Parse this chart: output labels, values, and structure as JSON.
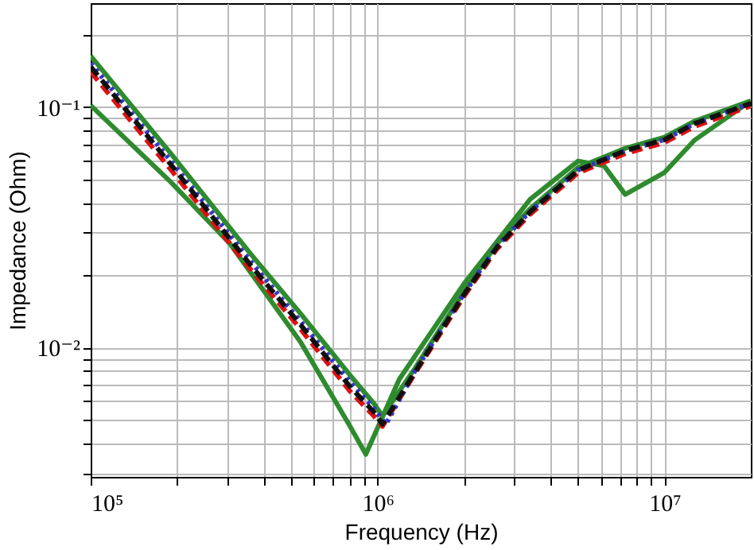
{
  "chart_data": {
    "type": "line",
    "xlabel": "Frequency (Hz)",
    "ylabel": "Impedance (Ohm)",
    "log": "xy",
    "grid": true,
    "marker": "none",
    "xlim": [
      100000,
      20000000
    ],
    "ylim": [
      0.0029,
      0.27
    ],
    "xticks": [
      {
        "value": 100000,
        "label": "10⁵"
      },
      {
        "value": 200000,
        "label": null
      },
      {
        "value": 300000,
        "label": null
      },
      {
        "value": 400000,
        "label": null
      },
      {
        "value": 500000,
        "label": null
      },
      {
        "value": 600000,
        "label": null
      },
      {
        "value": 700000,
        "label": null
      },
      {
        "value": 800000,
        "label": null
      },
      {
        "value": 900000,
        "label": null
      },
      {
        "value": 1000000,
        "label": "10⁶"
      },
      {
        "value": 2000000,
        "label": null
      },
      {
        "value": 3000000,
        "label": null
      },
      {
        "value": 4000000,
        "label": null
      },
      {
        "value": 5000000,
        "label": null
      },
      {
        "value": 6000000,
        "label": null
      },
      {
        "value": 7000000,
        "label": null
      },
      {
        "value": 8000000,
        "label": null
      },
      {
        "value": 9000000,
        "label": null
      },
      {
        "value": 10000000,
        "label": "10⁷"
      }
    ],
    "yticks": [
      {
        "value": 0.003,
        "label": null
      },
      {
        "value": 0.004,
        "label": null
      },
      {
        "value": 0.005,
        "label": null
      },
      {
        "value": 0.006,
        "label": null
      },
      {
        "value": 0.007,
        "label": null
      },
      {
        "value": 0.008,
        "label": null
      },
      {
        "value": 0.009,
        "label": null
      },
      {
        "value": 0.01,
        "label": "10⁻²"
      },
      {
        "value": 0.02,
        "label": null
      },
      {
        "value": 0.03,
        "label": null
      },
      {
        "value": 0.04,
        "label": null
      },
      {
        "value": 0.05,
        "label": null
      },
      {
        "value": 0.06,
        "label": null
      },
      {
        "value": 0.07,
        "label": null
      },
      {
        "value": 0.08,
        "label": null
      },
      {
        "value": 0.09,
        "label": null
      },
      {
        "value": 0.1,
        "label": "10⁻¹"
      },
      {
        "value": 0.2,
        "label": null
      }
    ],
    "series": [
      {
        "color": "#2e8b2e",
        "line_style": "solid",
        "x": [
          100000,
          190000,
          360000,
          540000,
          800000,
          970000,
          1040000,
          1350000,
          2000000,
          2600000,
          3400000,
          5000000,
          7300000,
          10000000,
          12700000,
          20000000
        ],
        "values": [
          0.163,
          0.0642,
          0.0246,
          0.0138,
          0.0077,
          0.00586,
          0.00519,
          0.0082,
          0.0171,
          0.0269,
          0.0377,
          0.056,
          0.0673,
          0.0748,
          0.0872,
          0.106
        ]
      },
      {
        "color": "#2e8b2e",
        "line_style": "solid",
        "x": [
          100000,
          190000,
          306000,
          540000,
          800000,
          910000,
          1190000,
          2000000,
          3400000,
          5000000,
          6150000,
          7300000,
          10000000,
          12700000,
          20000000
        ],
        "values": [
          0.1015,
          0.0488,
          0.027,
          0.0105,
          0.00473,
          0.0036,
          0.00738,
          0.0184,
          0.0413,
          0.0596,
          0.057,
          0.0433,
          0.0534,
          0.0726,
          0.106
        ]
      },
      {
        "color": "#dd1111",
        "line_style": "dashed",
        "x": [
          100000,
          190000,
          360000,
          540000,
          800000,
          970000,
          1040000,
          1350000,
          2000000,
          2600000,
          3400000,
          5000000,
          7300000,
          10000000,
          12700000,
          20000000
        ],
        "values": [
          0.14,
          0.055,
          0.0212,
          0.0119,
          0.0066,
          0.0052,
          0.0047,
          0.0078,
          0.0163,
          0.0256,
          0.0358,
          0.0532,
          0.064,
          0.0711,
          0.0828,
          0.101
        ]
      },
      {
        "color": "#3333cc",
        "line_style": "dotted",
        "x": [
          100000,
          190000,
          360000,
          540000,
          800000,
          970000,
          1070000,
          1350000,
          2000000,
          2600000,
          3400000,
          5000000,
          7300000,
          10000000,
          12700000,
          20000000
        ],
        "values": [
          0.152,
          0.0597,
          0.0229,
          0.0128,
          0.0072,
          0.0056,
          0.0048,
          0.008,
          0.0167,
          0.0263,
          0.0368,
          0.0547,
          0.0658,
          0.0731,
          0.0852,
          0.1035
        ]
      },
      {
        "color": "#111111",
        "line_style": "dashed",
        "x": [
          100000,
          190000,
          360000,
          540000,
          800000,
          970000,
          1040000,
          1350000,
          2000000,
          2600000,
          3400000,
          5000000,
          7300000,
          10000000,
          12700000,
          20000000
        ],
        "values": [
          0.147,
          0.0578,
          0.0221,
          0.0124,
          0.0069,
          0.0054,
          0.0048,
          0.0079,
          0.0166,
          0.026,
          0.0366,
          0.0545,
          0.0658,
          0.0731,
          0.0852,
          0.1035
        ]
      }
    ]
  }
}
